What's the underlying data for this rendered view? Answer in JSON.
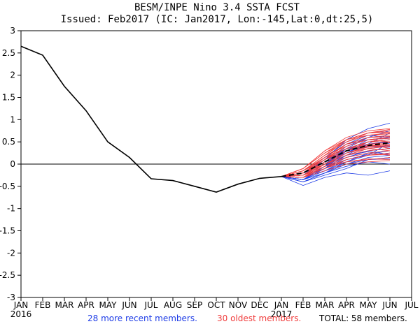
{
  "chart_data": {
    "type": "line",
    "title": "BESM/INPE Nino 3.4 SSTA FCST",
    "subtitle": "Issued: Feb2017 (IC: Jan2017, Lon:-145,Lat:0,dt:25,5)",
    "xlabel": "",
    "ylabel": "",
    "ylim": [
      -3,
      3
    ],
    "yticks": [
      "-3",
      "-2.5",
      "-2",
      "-1.5",
      "-1",
      "-0.5",
      "0",
      "0.5",
      "1",
      "1.5",
      "2",
      "2.5",
      "3"
    ],
    "categories": [
      "JAN",
      "FEB",
      "MAR",
      "APR",
      "MAY",
      "JUN",
      "JUL",
      "AUG",
      "SEP",
      "OCT",
      "NOV",
      "DEC",
      "JAN",
      "FEB",
      "MAR",
      "APR",
      "MAY",
      "JUN",
      "JUL"
    ],
    "year_labels": [
      {
        "text": "2016",
        "index": 0
      },
      {
        "text": "2017",
        "index": 12
      }
    ],
    "observed": {
      "name": "Observed",
      "color": "#000000",
      "values": [
        2.65,
        2.45,
        1.75,
        1.2,
        0.5,
        0.15,
        -0.33,
        -0.37,
        -0.5,
        -0.63,
        -0.45,
        -0.32,
        -0.28
      ]
    },
    "ensemble_mean": {
      "name": "Ensemble mean",
      "color": "#000000",
      "values": [
        -0.28,
        -0.2,
        0.05,
        0.3,
        0.42,
        0.48
      ]
    },
    "recent_members": {
      "name": "28 more recent members.",
      "color": "#1e3ce6",
      "count": 28,
      "start_index": 12,
      "first_value": -0.28,
      "trajectories": [
        [
          -0.35,
          -0.05,
          0.35,
          0.6,
          0.75
        ],
        [
          -0.3,
          -0.1,
          0.15,
          0.3,
          0.35
        ],
        [
          -0.48,
          -0.3,
          -0.2,
          -0.25,
          -0.15
        ],
        [
          -0.25,
          0.1,
          0.55,
          0.8,
          0.92
        ],
        [
          -0.3,
          -0.15,
          0.1,
          0.2,
          0.25
        ],
        [
          -0.2,
          0.15,
          0.45,
          0.55,
          0.6
        ],
        [
          -0.4,
          -0.2,
          0.05,
          0.25,
          0.3
        ],
        [
          -0.25,
          0.0,
          0.3,
          0.45,
          0.5
        ],
        [
          -0.3,
          -0.05,
          0.2,
          0.35,
          0.4
        ],
        [
          -0.35,
          -0.15,
          0.0,
          0.1,
          0.12
        ],
        [
          -0.2,
          0.05,
          0.35,
          0.5,
          0.55
        ],
        [
          -0.3,
          -0.1,
          0.2,
          0.45,
          0.7
        ],
        [
          -0.25,
          0.05,
          0.4,
          0.6,
          0.62
        ],
        [
          -0.35,
          -0.2,
          -0.05,
          0.05,
          0.0
        ],
        [
          -0.2,
          0.1,
          0.3,
          0.38,
          0.42
        ],
        [
          -0.3,
          -0.05,
          0.25,
          0.5,
          0.55
        ],
        [
          -0.4,
          -0.25,
          -0.1,
          0.1,
          0.15
        ],
        [
          -0.25,
          0.0,
          0.15,
          0.3,
          0.35
        ],
        [
          -0.3,
          -0.1,
          0.3,
          0.55,
          0.58
        ],
        [
          -0.2,
          0.15,
          0.5,
          0.7,
          0.75
        ],
        [
          -0.35,
          -0.1,
          0.1,
          0.22,
          0.3
        ],
        [
          -0.25,
          0.0,
          0.35,
          0.4,
          0.45
        ],
        [
          -0.3,
          -0.15,
          0.05,
          0.2,
          0.48
        ],
        [
          -0.2,
          0.05,
          0.25,
          0.45,
          0.5
        ],
        [
          -0.35,
          -0.05,
          0.3,
          0.42,
          0.38
        ],
        [
          -0.3,
          0.0,
          0.2,
          0.28,
          0.22
        ],
        [
          -0.25,
          0.1,
          0.45,
          0.65,
          0.6
        ],
        [
          -0.4,
          -0.2,
          0.0,
          0.15,
          0.2
        ]
      ]
    },
    "oldest_members": {
      "name": "30 oldest members.",
      "color": "#f03c3c",
      "count": 30,
      "start_index": 12,
      "first_value": -0.28,
      "trajectories": [
        [
          -0.15,
          0.2,
          0.5,
          0.7,
          0.78
        ],
        [
          -0.25,
          0.0,
          0.25,
          0.4,
          0.45
        ],
        [
          -0.1,
          0.25,
          0.55,
          0.7,
          0.72
        ],
        [
          -0.2,
          0.05,
          0.3,
          0.5,
          0.55
        ],
        [
          -0.3,
          -0.05,
          0.15,
          0.25,
          0.3
        ],
        [
          -0.15,
          0.15,
          0.45,
          0.6,
          0.65
        ],
        [
          -0.25,
          0.0,
          0.2,
          0.35,
          0.4
        ],
        [
          -0.1,
          0.3,
          0.6,
          0.75,
          0.8
        ],
        [
          -0.2,
          0.1,
          0.35,
          0.5,
          0.5
        ],
        [
          -0.3,
          -0.1,
          0.1,
          0.2,
          0.25
        ],
        [
          -0.15,
          0.2,
          0.4,
          0.55,
          0.6
        ],
        [
          -0.25,
          0.05,
          0.3,
          0.45,
          0.48
        ],
        [
          -0.2,
          0.1,
          0.45,
          0.6,
          0.62
        ],
        [
          -0.3,
          -0.05,
          0.05,
          0.1,
          0.15
        ],
        [
          -0.15,
          0.15,
          0.35,
          0.5,
          0.55
        ],
        [
          -0.2,
          0.05,
          0.25,
          0.35,
          0.3
        ],
        [
          -0.1,
          0.25,
          0.5,
          0.65,
          0.7
        ],
        [
          -0.25,
          0.0,
          0.2,
          0.3,
          0.35
        ],
        [
          -0.2,
          0.1,
          0.4,
          0.55,
          0.58
        ],
        [
          -0.3,
          -0.15,
          0.0,
          0.05,
          0.08
        ],
        [
          -0.15,
          0.2,
          0.55,
          0.7,
          0.75
        ],
        [
          -0.25,
          0.05,
          0.3,
          0.42,
          0.45
        ],
        [
          -0.2,
          0.0,
          0.15,
          0.25,
          0.2
        ],
        [
          -0.1,
          0.3,
          0.55,
          0.65,
          0.68
        ],
        [
          -0.25,
          -0.05,
          0.1,
          0.2,
          0.22
        ],
        [
          -0.2,
          0.15,
          0.45,
          0.55,
          0.5
        ],
        [
          -0.15,
          0.1,
          0.3,
          0.4,
          0.42
        ],
        [
          -0.3,
          0.0,
          0.25,
          0.38,
          0.4
        ],
        [
          -0.2,
          0.1,
          0.35,
          0.45,
          0.35
        ],
        [
          -0.25,
          -0.1,
          0.05,
          0.12,
          0.1
        ]
      ]
    },
    "legend_total": "TOTAL: 58 members."
  }
}
